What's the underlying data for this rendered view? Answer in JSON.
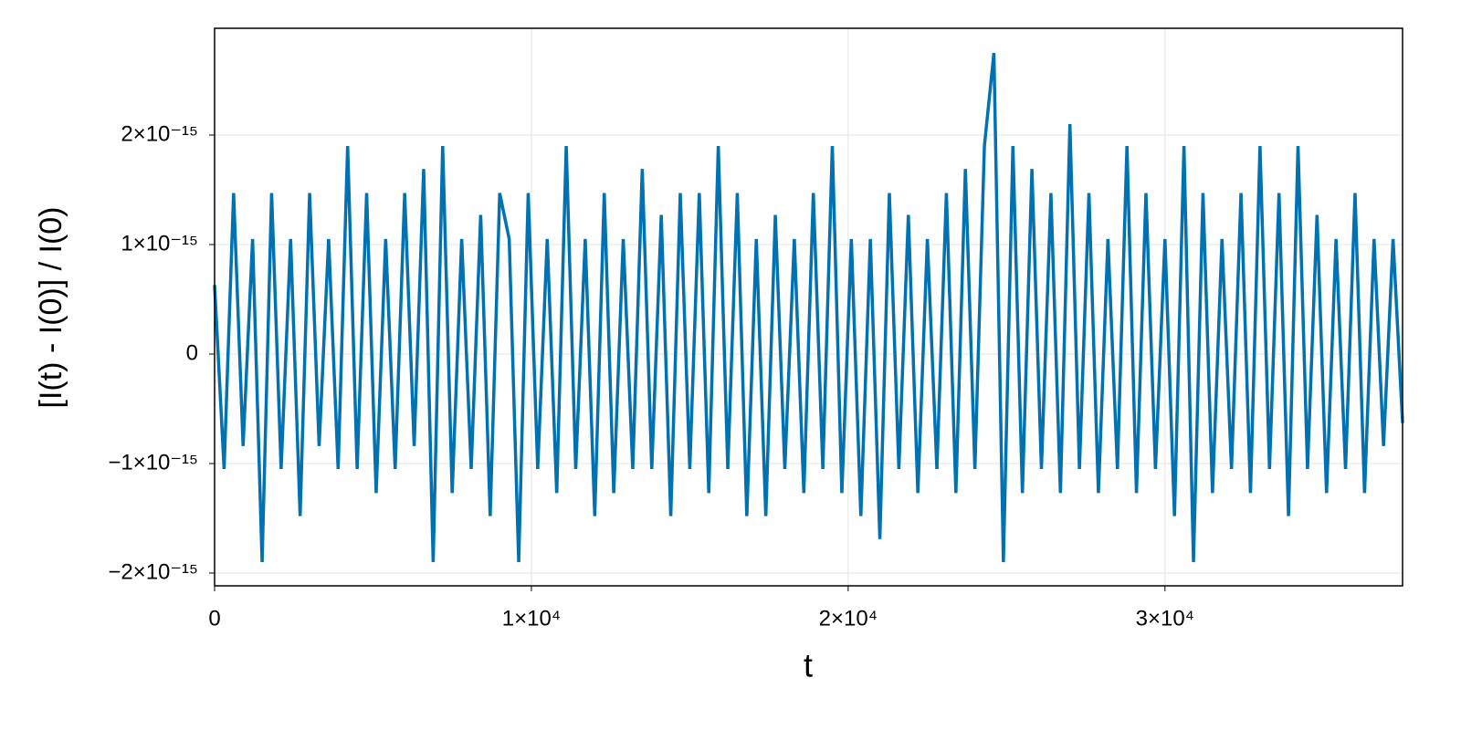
{
  "chart_data": {
    "type": "line",
    "xlabel": "t",
    "ylabel": "[I(t) - I(0)] / I(0)",
    "xlim": [
      0,
      37500
    ],
    "ylim": [
      -2.117e-15,
      2.975e-15
    ],
    "xticks": [
      0,
      {
        "value": 10000,
        "label": "1×10⁴"
      },
      {
        "value": 20000,
        "label": "2×10⁴"
      },
      {
        "value": 30000,
        "label": "3×10⁴"
      }
    ],
    "yticks": [
      {
        "value": -2e-15,
        "label": "−2×10⁻¹⁵"
      },
      {
        "value": -1e-15,
        "label": "−1×10⁻¹⁵"
      },
      0,
      {
        "value": 1e-15,
        "label": "1×10⁻¹⁵"
      },
      {
        "value": 2e-15,
        "label": "2×10⁻¹⁵"
      }
    ],
    "grid": true,
    "series": [
      {
        "color": "#0072b2",
        "x": [
          0,
          300,
          600,
          900,
          1200,
          1500,
          1800,
          2100,
          2400,
          2700,
          3000,
          3300,
          3600,
          3900,
          4200,
          4500,
          4800,
          5100,
          5400,
          5700,
          6000,
          6300,
          6600,
          6900,
          7200,
          7500,
          7800,
          8100,
          8400,
          8700,
          9000,
          9300,
          9600,
          9900,
          10200,
          10500,
          10800,
          11100,
          11400,
          11700,
          12000,
          12300,
          12600,
          12900,
          13200,
          13500,
          13800,
          14100,
          14400,
          14700,
          15000,
          15300,
          15600,
          15900,
          16200,
          16500,
          16800,
          17100,
          17400,
          17700,
          18000,
          18300,
          18600,
          18900,
          19200,
          19500,
          19800,
          20100,
          20400,
          20700,
          21000,
          21300,
          21600,
          21900,
          22200,
          22500,
          22800,
          23100,
          23400,
          23700,
          24000,
          24300,
          24600,
          24900,
          25200,
          25500,
          25800,
          26100,
          26400,
          26700,
          27000,
          27300,
          27600,
          27900,
          28200,
          28500,
          28800,
          29100,
          29400,
          29700,
          30000,
          30300,
          30600,
          30900,
          31200,
          31500,
          31800,
          32100,
          32400,
          32700,
          33000,
          33300,
          33600,
          33900,
          34200,
          34500,
          34800,
          35100,
          35400,
          35700,
          36000,
          36300,
          36600,
          36900,
          37200,
          37500
        ],
        "values": [
          6.3e-16,
          -1.05e-15,
          1.47e-15,
          -8.4e-16,
          1.05e-15,
          -1.9e-15,
          1.47e-15,
          -1.05e-15,
          1.05e-15,
          -1.48e-15,
          1.47e-15,
          -8.4e-16,
          1.05e-15,
          -1.05e-15,
          1.9e-15,
          -1.05e-15,
          1.47e-15,
          -1.27e-15,
          1.05e-15,
          -1.05e-15,
          1.47e-15,
          -8.4e-16,
          1.69e-15,
          -1.9e-15,
          1.9e-15,
          -1.27e-15,
          1.05e-15,
          -1.05e-15,
          1.27e-15,
          -1.48e-15,
          1.47e-15,
          1.05e-15,
          -1.9e-15,
          1.47e-15,
          -1.05e-15,
          1.05e-15,
          -1.27e-15,
          1.9e-15,
          -1.05e-15,
          1.05e-15,
          -1.48e-15,
          1.47e-15,
          -1.27e-15,
          1.05e-15,
          -1.05e-15,
          1.69e-15,
          -1.05e-15,
          1.27e-15,
          -1.48e-15,
          1.47e-15,
          -1.05e-15,
          1.47e-15,
          -1.27e-15,
          1.9e-15,
          -1.05e-15,
          1.47e-15,
          -1.48e-15,
          1.05e-15,
          -1.48e-15,
          1.27e-15,
          -1.05e-15,
          1.05e-15,
          -1.27e-15,
          1.47e-15,
          -1.05e-15,
          1.9e-15,
          -1.27e-15,
          1.05e-15,
          -1.48e-15,
          1.05e-15,
          -1.69e-15,
          1.47e-15,
          -1.05e-15,
          1.27e-15,
          -1.27e-15,
          1.05e-15,
          -1.05e-15,
          1.47e-15,
          -1.27e-15,
          1.69e-15,
          -1.05e-15,
          1.9e-15,
          2.75e-15,
          -1.9e-15,
          1.9e-15,
          -1.27e-15,
          1.69e-15,
          -1.05e-15,
          1.47e-15,
          -1.27e-15,
          2.1e-15,
          -1.05e-15,
          1.47e-15,
          -1.27e-15,
          1.05e-15,
          -1.05e-15,
          1.9e-15,
          -1.27e-15,
          1.47e-15,
          -1.05e-15,
          1.05e-15,
          -1.48e-15,
          1.9e-15,
          -1.9e-15,
          1.47e-15,
          -1.27e-15,
          1.05e-15,
          -1.05e-15,
          1.47e-15,
          -1.27e-15,
          1.9e-15,
          -1.05e-15,
          1.47e-15,
          -1.48e-15,
          1.9e-15,
          -1.05e-15,
          1.27e-15,
          -1.27e-15,
          1.05e-15,
          -1.05e-15,
          1.47e-15,
          -1.27e-15,
          1.05e-15,
          -8.4e-16,
          1.05e-15,
          -6.3e-16
        ]
      }
    ]
  }
}
